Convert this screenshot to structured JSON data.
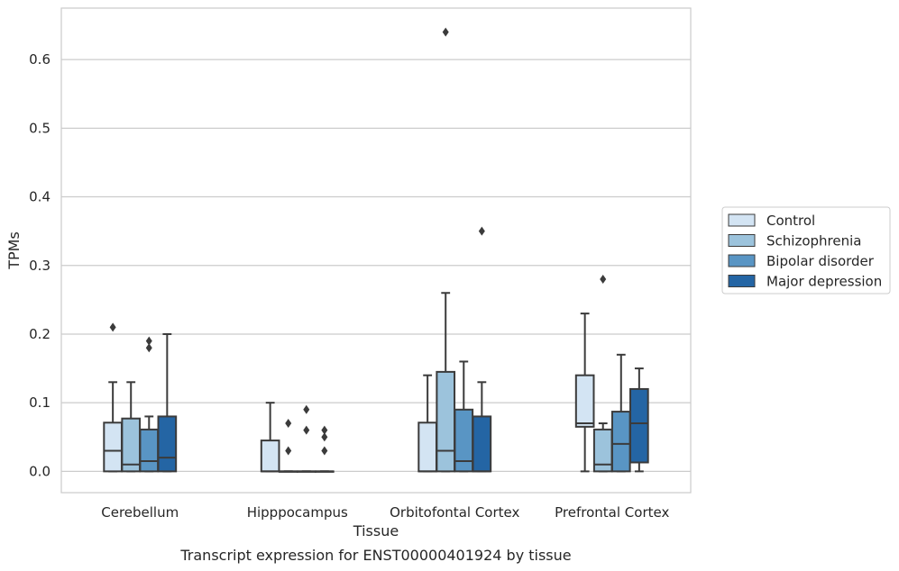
{
  "chart_data": {
    "type": "boxplot",
    "xlabel": "Tissue",
    "ylabel": "TPMs",
    "caption": "Transcript expression for ENST00000401924 by tissue",
    "ylim": [
      -0.031,
      0.675
    ],
    "yticks": [
      "0.0",
      "0.1",
      "0.2",
      "0.3",
      "0.4",
      "0.5",
      "0.6"
    ],
    "grid": "horizontal",
    "legend_position": "right",
    "categories": [
      "Cerebellum",
      "Hipppocampus",
      "Orbitofontal Cortex",
      "Prefrontal Cortex"
    ],
    "series": [
      {
        "name": "Control",
        "color": "#d3e4f3",
        "boxes": [
          {
            "whislo": 0.0,
            "q1": 0.0,
            "med": 0.03,
            "q3": 0.071,
            "whishi": 0.13,
            "fliers": [
              0.21
            ]
          },
          {
            "whislo": 0.0,
            "q1": 0.0,
            "med": 0.0,
            "q3": 0.045,
            "whishi": 0.1,
            "fliers": []
          },
          {
            "whislo": 0.0,
            "q1": 0.0,
            "med": 0.0,
            "q3": 0.071,
            "whishi": 0.14,
            "fliers": []
          },
          {
            "whislo": 0.0,
            "q1": 0.065,
            "med": 0.07,
            "q3": 0.14,
            "whishi": 0.23,
            "fliers": []
          }
        ]
      },
      {
        "name": "Schizophrenia",
        "color": "#9cc3dc",
        "boxes": [
          {
            "whislo": 0.0,
            "q1": 0.0,
            "med": 0.01,
            "q3": 0.077,
            "whishi": 0.13,
            "fliers": []
          },
          {
            "whislo": 0.0,
            "q1": 0.0,
            "med": 0.0,
            "q3": 0.0,
            "whishi": 0.0,
            "fliers": [
              0.03,
              0.07
            ]
          },
          {
            "whislo": 0.0,
            "q1": 0.0,
            "med": 0.03,
            "q3": 0.145,
            "whishi": 0.26,
            "fliers": [
              0.64
            ]
          },
          {
            "whislo": 0.0,
            "q1": 0.0,
            "med": 0.01,
            "q3": 0.061,
            "whishi": 0.07,
            "fliers": [
              0.28
            ]
          }
        ]
      },
      {
        "name": "Bipolar disorder",
        "color": "#5995c4",
        "boxes": [
          {
            "whislo": 0.0,
            "q1": 0.0,
            "med": 0.015,
            "q3": 0.061,
            "whishi": 0.08,
            "fliers": [
              0.18,
              0.19
            ]
          },
          {
            "whislo": 0.0,
            "q1": 0.0,
            "med": 0.0,
            "q3": 0.0,
            "whishi": 0.0,
            "fliers": [
              0.06,
              0.09
            ]
          },
          {
            "whislo": 0.0,
            "q1": 0.0,
            "med": 0.015,
            "q3": 0.09,
            "whishi": 0.16,
            "fliers": []
          },
          {
            "whislo": 0.0,
            "q1": 0.0,
            "med": 0.04,
            "q3": 0.087,
            "whishi": 0.17,
            "fliers": []
          }
        ]
      },
      {
        "name": "Major depression",
        "color": "#2465a4",
        "boxes": [
          {
            "whislo": 0.0,
            "q1": 0.0,
            "med": 0.02,
            "q3": 0.08,
            "whishi": 0.2,
            "fliers": []
          },
          {
            "whislo": 0.0,
            "q1": 0.0,
            "med": 0.0,
            "q3": 0.0,
            "whishi": 0.0,
            "fliers": [
              0.03,
              0.05,
              0.06
            ]
          },
          {
            "whislo": 0.0,
            "q1": 0.0,
            "med": 0.0,
            "q3": 0.08,
            "whishi": 0.13,
            "fliers": [
              0.35
            ]
          },
          {
            "whislo": 0.0,
            "q1": 0.013,
            "med": 0.07,
            "q3": 0.12,
            "whishi": 0.15,
            "fliers": []
          }
        ]
      }
    ]
  }
}
